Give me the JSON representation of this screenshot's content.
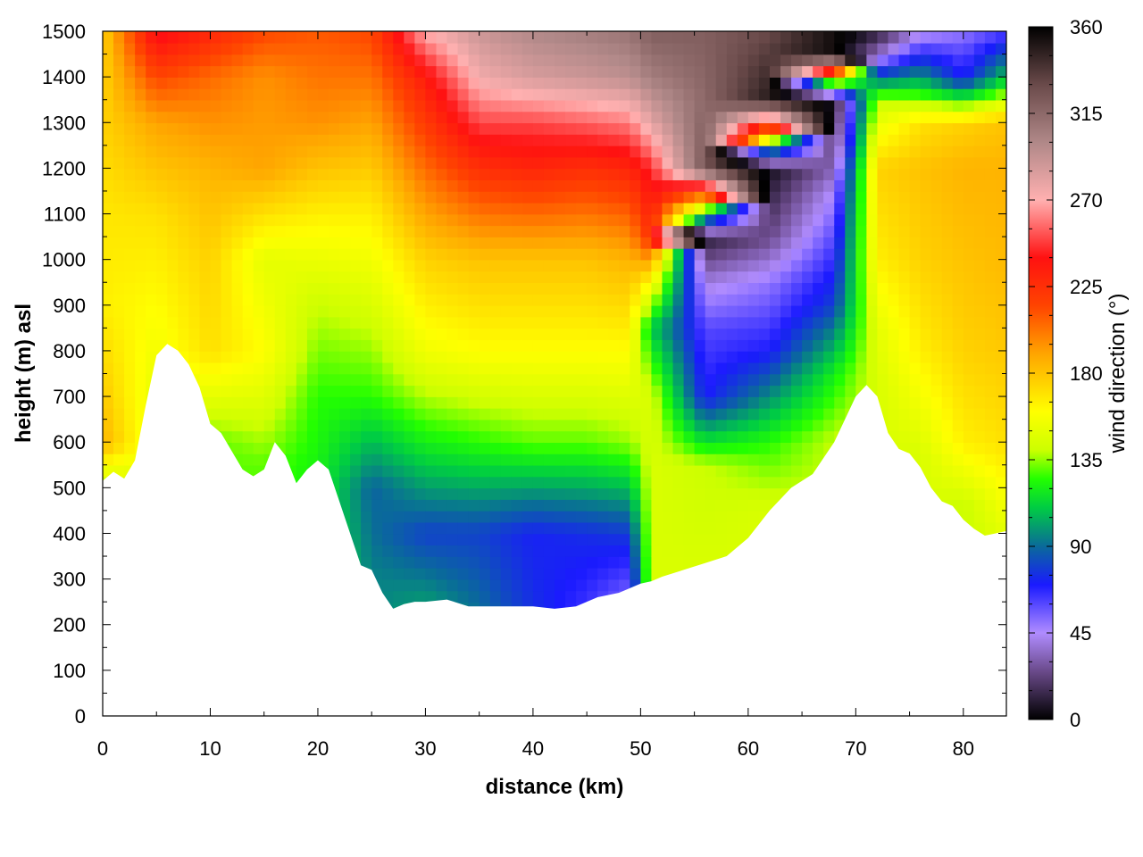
{
  "chart_data": {
    "type": "heatmap",
    "title": "",
    "xlabel": "distance (km)",
    "ylabel": "height (m) asl",
    "colorbar_label": "wind direction (°)",
    "xlim": [
      0,
      84
    ],
    "ylim": [
      0,
      1500
    ],
    "x_ticks": [
      0,
      10,
      20,
      30,
      40,
      50,
      60,
      70,
      80
    ],
    "y_ticks": [
      0,
      100,
      200,
      300,
      400,
      500,
      600,
      700,
      800,
      900,
      1000,
      1100,
      1200,
      1300,
      1400,
      1500
    ],
    "colorbar_range": [
      0,
      360
    ],
    "colorbar_ticks": [
      0,
      45,
      90,
      135,
      180,
      225,
      270,
      315,
      360
    ],
    "grid": true,
    "colormap": [
      {
        "value": 0,
        "color": "#000000"
      },
      {
        "value": 25,
        "color": "#6a4a8a"
      },
      {
        "value": 45,
        "color": "#b08cff"
      },
      {
        "value": 70,
        "color": "#1a1aff"
      },
      {
        "value": 90,
        "color": "#0a6a9a"
      },
      {
        "value": 110,
        "color": "#00cc44"
      },
      {
        "value": 125,
        "color": "#22ff00"
      },
      {
        "value": 140,
        "color": "#ccff00"
      },
      {
        "value": 160,
        "color": "#ffff00"
      },
      {
        "value": 190,
        "color": "#ffa500"
      },
      {
        "value": 215,
        "color": "#ff4400"
      },
      {
        "value": 240,
        "color": "#ff1111"
      },
      {
        "value": 270,
        "color": "#ffb0b0"
      },
      {
        "value": 300,
        "color": "#b08888"
      },
      {
        "value": 330,
        "color": "#6a4a4a"
      },
      {
        "value": 360,
        "color": "#000000"
      }
    ],
    "terrain": {
      "distance_km": [
        0,
        1,
        2,
        3,
        4,
        5,
        6,
        7,
        8,
        9,
        10,
        11,
        12,
        13,
        14,
        15,
        16,
        17,
        18,
        19,
        20,
        21,
        22,
        23,
        24,
        25,
        26,
        27,
        28,
        29,
        30,
        32,
        34,
        36,
        38,
        40,
        42,
        44,
        46,
        48,
        50,
        51,
        52,
        54,
        56,
        58,
        60,
        62,
        64,
        66,
        68,
        70,
        71,
        72,
        73,
        74,
        75,
        76,
        77,
        78,
        79,
        80,
        81,
        82,
        83,
        84
      ],
      "height_m": [
        515,
        535,
        520,
        560,
        680,
        790,
        815,
        800,
        770,
        720,
        640,
        620,
        580,
        540,
        525,
        540,
        600,
        570,
        510,
        540,
        560,
        540,
        470,
        400,
        330,
        320,
        270,
        235,
        245,
        250,
        250,
        255,
        240,
        240,
        240,
        240,
        235,
        240,
        260,
        270,
        290,
        295,
        305,
        320,
        335,
        350,
        390,
        450,
        500,
        530,
        600,
        700,
        725,
        700,
        620,
        585,
        575,
        545,
        500,
        470,
        460,
        430,
        410,
        395,
        400,
        405
      ]
    },
    "wind_direction_columns": [
      {
        "distance_km": 0,
        "heights_m": [
          500,
          600,
          750,
          900,
          1100,
          1300,
          1500
        ],
        "direction_deg": [
          135,
          185,
          175,
          165,
          168,
          175,
          175
        ]
      },
      {
        "distance_km": 5,
        "heights_m": [
          700,
          900,
          1100,
          1300,
          1400,
          1500
        ],
        "direction_deg": [
          150,
          160,
          170,
          190,
          215,
          245
        ]
      },
      {
        "distance_km": 10,
        "heights_m": [
          600,
          800,
          1000,
          1200,
          1400,
          1500
        ],
        "direction_deg": [
          130,
          170,
          175,
          185,
          205,
          230
        ]
      },
      {
        "distance_km": 15,
        "heights_m": [
          550,
          800,
          1000,
          1200,
          1400,
          1500
        ],
        "direction_deg": [
          130,
          160,
          150,
          190,
          195,
          215
        ]
      },
      {
        "distance_km": 20,
        "heights_m": [
          500,
          700,
          900,
          1100,
          1300,
          1500
        ],
        "direction_deg": [
          120,
          125,
          140,
          165,
          195,
          210
        ]
      },
      {
        "distance_km": 25,
        "heights_m": [
          300,
          500,
          700,
          900,
          1100,
          1300,
          1500
        ],
        "direction_deg": [
          95,
          88,
          125,
          145,
          165,
          190,
          215
        ]
      },
      {
        "distance_km": 30,
        "heights_m": [
          250,
          400,
          600,
          800,
          1000,
          1200,
          1400,
          1500
        ],
        "direction_deg": [
          100,
          80,
          120,
          155,
          175,
          205,
          235,
          270
        ]
      },
      {
        "distance_km": 35,
        "heights_m": [
          240,
          400,
          600,
          800,
          1000,
          1200,
          1300,
          1400,
          1500
        ],
        "direction_deg": [
          90,
          80,
          125,
          160,
          180,
          225,
          250,
          275,
          290
        ]
      },
      {
        "distance_km": 40,
        "heights_m": [
          240,
          400,
          600,
          800,
          1000,
          1200,
          1300,
          1400,
          1500
        ],
        "direction_deg": [
          75,
          72,
          130,
          160,
          180,
          230,
          250,
          285,
          300
        ]
      },
      {
        "distance_km": 45,
        "heights_m": [
          250,
          400,
          600,
          800,
          1000,
          1200,
          1300,
          1400,
          1500
        ],
        "direction_deg": [
          65,
          75,
          130,
          160,
          180,
          225,
          255,
          290,
          305
        ]
      },
      {
        "distance_km": 49,
        "heights_m": [
          270,
          400,
          600,
          800,
          1000,
          1200,
          1300,
          1400,
          1500
        ],
        "direction_deg": [
          55,
          78,
          135,
          160,
          185,
          230,
          260,
          295,
          310
        ]
      },
      {
        "distance_km": 51,
        "heights_m": [
          295,
          500,
          700,
          850,
          950,
          1050,
          1200,
          1300,
          1400,
          1500
        ],
        "direction_deg": [
          145,
          145,
          145,
          110,
          160,
          225,
          245,
          280,
          305,
          320
        ]
      },
      {
        "distance_km": 56,
        "heights_m": [
          330,
          550,
          700,
          850,
          950,
          1050,
          1200,
          1350,
          1500
        ],
        "direction_deg": [
          145,
          140,
          70,
          60,
          40,
          10,
          325,
          315,
          320
        ]
      },
      {
        "distance_km": 62,
        "heights_m": [
          450,
          600,
          800,
          950,
          1050,
          1200,
          1350,
          1500
        ],
        "direction_deg": [
          145,
          125,
          70,
          50,
          25,
          5,
          350,
          330
        ]
      },
      {
        "distance_km": 68,
        "heights_m": [
          600,
          750,
          900,
          1050,
          1150,
          1250,
          1350,
          1450
        ],
        "direction_deg": [
          140,
          120,
          80,
          60,
          45,
          20,
          5,
          355
        ]
      },
      {
        "distance_km": 72,
        "heights_m": [
          725,
          850,
          1000,
          1200,
          1350,
          1450,
          1500
        ],
        "direction_deg": [
          145,
          150,
          165,
          175,
          140,
          35,
          10
        ]
      },
      {
        "distance_km": 76,
        "heights_m": [
          575,
          800,
          1000,
          1200,
          1300,
          1400,
          1500
        ],
        "direction_deg": [
          145,
          165,
          175,
          180,
          170,
          100,
          40
        ]
      },
      {
        "distance_km": 80,
        "heights_m": [
          460,
          600,
          800,
          1000,
          1200,
          1300,
          1400,
          1500
        ],
        "direction_deg": [
          140,
          165,
          175,
          180,
          185,
          175,
          70,
          50
        ]
      },
      {
        "distance_km": 84,
        "heights_m": [
          405,
          600,
          800,
          1000,
          1200,
          1300,
          1400,
          1500
        ],
        "direction_deg": [
          150,
          170,
          178,
          183,
          185,
          180,
          110,
          60
        ]
      }
    ]
  }
}
